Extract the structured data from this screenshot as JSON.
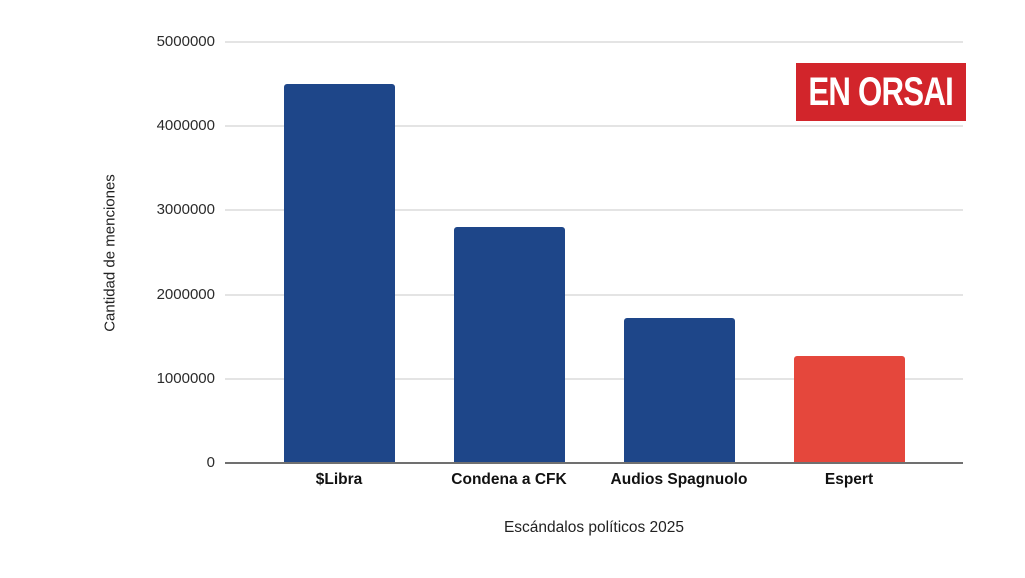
{
  "page": {
    "background": "#FFFFFF"
  },
  "badge": {
    "label": "EN ORSAI",
    "background": "#D2252B",
    "text_color": "#FFFFFF"
  },
  "chart_data": {
    "type": "bar",
    "categories": [
      "$Libra",
      "Condena a CFK",
      "Audios Spagnuolo",
      "Espert"
    ],
    "values": [
      4500000,
      2800000,
      1720000,
      1270000
    ],
    "bar_colors": [
      "#1E4689",
      "#1E4689",
      "#1E4689",
      "#E5473C"
    ],
    "xlabel": "Escándalos políticos 2025",
    "ylabel": "Cantidad de menciones",
    "ylim": [
      0,
      5000000
    ],
    "ytick_step": 1000000,
    "ytick_labels": [
      "5000000",
      "4000000",
      "3000000",
      "2000000",
      "1000000",
      "0"
    ],
    "grid": "horizontal",
    "legend": "none",
    "gridline_color": "#E4E4E4",
    "axis_line_color": "#707070",
    "tick_label_color": "#2B2B2B"
  }
}
